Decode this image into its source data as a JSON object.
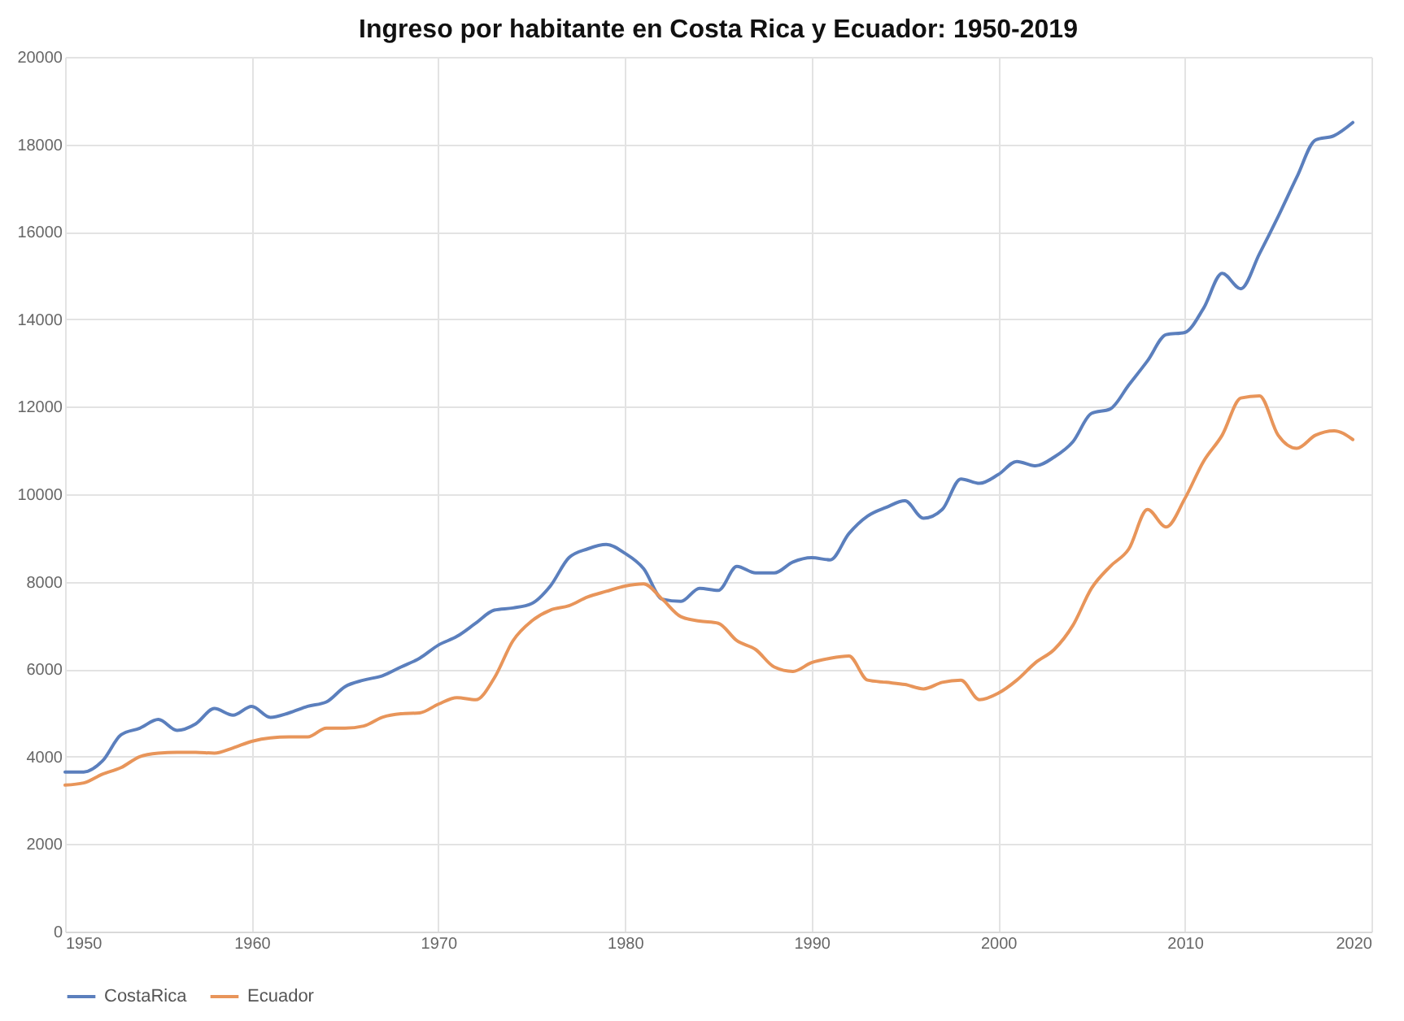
{
  "chart_data": {
    "type": "line",
    "title": "Ingreso por habitante en Costa Rica y Ecuador: 1950-2019",
    "x": [
      1950,
      1951,
      1952,
      1953,
      1954,
      1955,
      1956,
      1957,
      1958,
      1959,
      1960,
      1961,
      1962,
      1963,
      1964,
      1965,
      1966,
      1967,
      1968,
      1969,
      1970,
      1971,
      1972,
      1973,
      1974,
      1975,
      1976,
      1977,
      1978,
      1979,
      1980,
      1981,
      1982,
      1983,
      1984,
      1985,
      1986,
      1987,
      1988,
      1989,
      1990,
      1991,
      1992,
      1993,
      1994,
      1995,
      1996,
      1997,
      1998,
      1999,
      2000,
      2001,
      2002,
      2003,
      2004,
      2005,
      2006,
      2007,
      2008,
      2009,
      2010,
      2011,
      2012,
      2013,
      2014,
      2015,
      2016,
      2017,
      2018,
      2019
    ],
    "series": [
      {
        "name": "CostaRica",
        "color": "#5b7fbd",
        "values": [
          3650,
          3650,
          3900,
          4500,
          4650,
          4850,
          4600,
          4750,
          5100,
          4950,
          5150,
          4900,
          5000,
          5150,
          5250,
          5600,
          5750,
          5850,
          6050,
          6250,
          6550,
          6750,
          7050,
          7350,
          7400,
          7500,
          7900,
          8550,
          8750,
          8850,
          8650,
          8300,
          7600,
          7550,
          7850,
          7800,
          8350,
          8200,
          8200,
          8450,
          8550,
          8500,
          9100,
          9500,
          9700,
          9850,
          9450,
          9650,
          10350,
          10250,
          10450,
          10750,
          10650,
          10850,
          11200,
          11850,
          11950,
          12500,
          13050,
          13650,
          13700,
          14250,
          15050,
          14700,
          15500,
          16350,
          17250,
          18100,
          18200,
          18500
        ]
      },
      {
        "name": "Ecuador",
        "color": "#e8955a",
        "values": [
          3350,
          3400,
          3600,
          3750,
          4000,
          4080,
          4100,
          4100,
          4080,
          4200,
          4350,
          4430,
          4450,
          4450,
          4650,
          4650,
          4700,
          4900,
          4980,
          5000,
          5200,
          5350,
          5300,
          5800,
          6650,
          7100,
          7350,
          7450,
          7650,
          7780,
          7900,
          7950,
          7600,
          7200,
          7100,
          7050,
          6650,
          6450,
          6050,
          5950,
          6150,
          6250,
          6300,
          5750,
          5700,
          5650,
          5550,
          5700,
          5750,
          5300,
          5450,
          5750,
          6150,
          6450,
          7000,
          7850,
          8350,
          8750,
          9650,
          9250,
          9900,
          10750,
          11350,
          12200,
          12250,
          11350,
          11050,
          11350,
          11450,
          11250
        ]
      }
    ],
    "xlim": [
      1950,
      2020
    ],
    "xticks": [
      1950,
      1960,
      1970,
      1980,
      1990,
      2000,
      2010,
      2020
    ],
    "ylim": [
      0,
      20000
    ],
    "yticks": [
      0,
      2000,
      4000,
      6000,
      8000,
      10000,
      12000,
      14000,
      16000,
      18000,
      20000
    ],
    "grid": true,
    "legend": "bottom",
    "marker": "none",
    "line_style": "solid"
  }
}
